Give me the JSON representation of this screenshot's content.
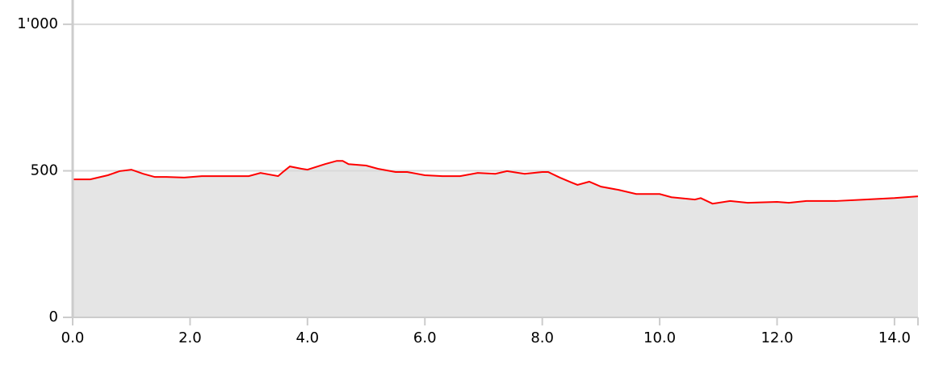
{
  "chart_data": {
    "type": "area",
    "x": [
      0,
      0.3,
      0.6,
      0.8,
      1.0,
      1.2,
      1.4,
      1.6,
      1.9,
      2.2,
      2.5,
      2.8,
      3.0,
      3.2,
      3.5,
      3.6,
      3.7,
      3.9,
      4.0,
      4.3,
      4.5,
      4.6,
      4.7,
      5.0,
      5.2,
      5.5,
      5.7,
      6.0,
      6.3,
      6.6,
      6.9,
      7.2,
      7.4,
      7.7,
      8.0,
      8.1,
      8.3,
      8.5,
      8.6,
      8.8,
      9.0,
      9.3,
      9.6,
      10.0,
      10.2,
      10.6,
      10.7,
      10.9,
      11.2,
      11.5,
      12.0,
      12.2,
      12.5,
      13.0,
      13.5,
      14.0,
      14.4
    ],
    "values": [
      471,
      471,
      485,
      499,
      504,
      490,
      479,
      479,
      477,
      482,
      482,
      482,
      482,
      493,
      482,
      499,
      515,
      507,
      504,
      523,
      534,
      534,
      523,
      518,
      507,
      496,
      496,
      485,
      482,
      482,
      493,
      490,
      499,
      490,
      496,
      496,
      477,
      460,
      452,
      463,
      446,
      435,
      421,
      421,
      410,
      402,
      407,
      388,
      397,
      391,
      394,
      391,
      397,
      397,
      402,
      407,
      413
    ],
    "color": "#ff0000",
    "fill": "#e5e5e5",
    "xlim": [
      0,
      14.4
    ],
    "xticks": [
      {
        "value": 0,
        "label": "0.0"
      },
      {
        "value": 2,
        "label": "2.0"
      },
      {
        "value": 4,
        "label": "4.0"
      },
      {
        "value": 6,
        "label": "6.0"
      },
      {
        "value": 8,
        "label": "8.0"
      },
      {
        "value": 10,
        "label": "10.0"
      },
      {
        "value": 12,
        "label": "12.0"
      },
      {
        "value": 14,
        "label": "14.0"
      }
    ],
    "ylim": [
      0,
      1083
    ],
    "yticks": [
      0,
      500,
      {
        "value": 1000,
        "label": "1'000"
      }
    ],
    "grid": true
  }
}
